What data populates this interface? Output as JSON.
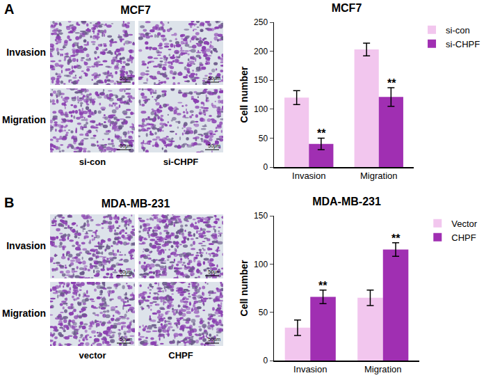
{
  "figure": {
    "panels": [
      {
        "letter": "A",
        "title": "MCF7",
        "row_labels": [
          "Invasion",
          "Migration"
        ],
        "col_labels": [
          "si-con",
          "si-CHPF"
        ],
        "scale_bar": "50μm"
      },
      {
        "letter": "B",
        "title": "MDA-MB-231",
        "row_labels": [
          "Invasion",
          "Migration"
        ],
        "col_labels": [
          "vector",
          "CHPF"
        ],
        "scale_bar": "50μm"
      }
    ]
  },
  "chart_data": [
    {
      "type": "bar",
      "title": "MCF7",
      "y_label": "Cell number",
      "categories": [
        "Invasion",
        "Migration"
      ],
      "series": [
        {
          "name": "si-con",
          "color": "#f2c6ee",
          "values": [
            120,
            203
          ],
          "error": [
            12,
            11
          ]
        },
        {
          "name": "si-CHPF",
          "color": "#a02fb2",
          "values": [
            40,
            121
          ],
          "error": [
            10,
            16
          ],
          "significance": [
            "**",
            "**"
          ]
        }
      ],
      "ylim": [
        0,
        250
      ],
      "yticks": [
        0,
        50,
        100,
        150,
        200,
        250
      ],
      "legend": "top right",
      "grid": false
    },
    {
      "type": "bar",
      "title": "MDA-MB-231",
      "y_label": "Cell number",
      "categories": [
        "Invasion",
        "Migration"
      ],
      "series": [
        {
          "name": "Vector",
          "color": "#f2c6ee",
          "values": [
            34,
            65
          ],
          "error": [
            8,
            8
          ]
        },
        {
          "name": "CHPF",
          "color": "#a02fb2",
          "values": [
            66,
            115
          ],
          "error": [
            7,
            7
          ],
          "significance": [
            "**",
            "**"
          ]
        }
      ],
      "ylim": [
        0,
        150
      ],
      "yticks": [
        0,
        50,
        100,
        150
      ],
      "legend": "top right",
      "grid": false
    }
  ]
}
